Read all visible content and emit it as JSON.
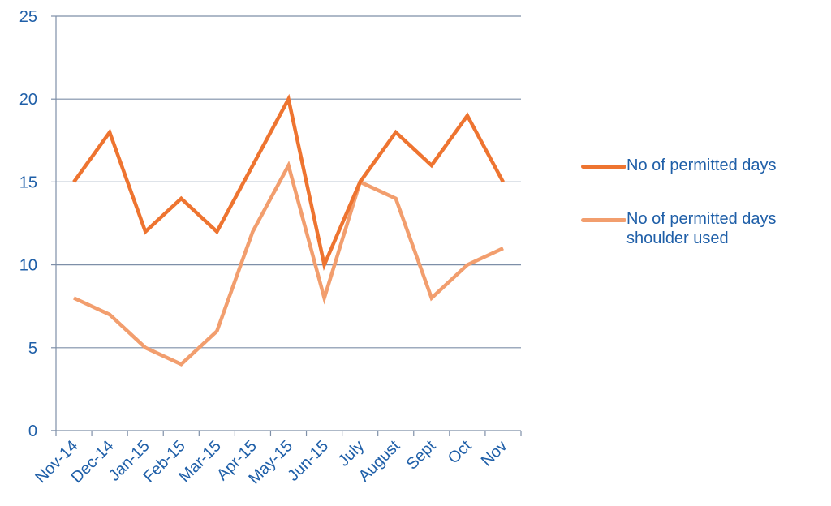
{
  "colors": {
    "axis_text": "#1F5FA8",
    "grid": "#7E8FA8",
    "axis": "#7E8FA8"
  },
  "chart_data": {
    "type": "line",
    "title": "",
    "xlabel": "",
    "ylabel": "",
    "ylim": [
      0,
      25
    ],
    "yticks": [
      0,
      5,
      10,
      15,
      20,
      25
    ],
    "grid": true,
    "legend_position": "right",
    "categories": [
      "Nov-14",
      "Dec-14",
      "Jan-15",
      "Feb-15",
      "Mar-15",
      "Apr-15",
      "May-15",
      "Jun-15",
      "July",
      "August",
      "Sept",
      "Oct",
      "Nov"
    ],
    "series": [
      {
        "name": "No of permitted days",
        "color": "#EE7430",
        "values": [
          15,
          18,
          12,
          14,
          12,
          16,
          20,
          10,
          15,
          18,
          16,
          19,
          15
        ]
      },
      {
        "name": "No of permitted days shoulder used",
        "color": "#F29E6E",
        "values": [
          8,
          7,
          5,
          4,
          6,
          12,
          16,
          8,
          15,
          14,
          8,
          10,
          11
        ]
      }
    ]
  }
}
